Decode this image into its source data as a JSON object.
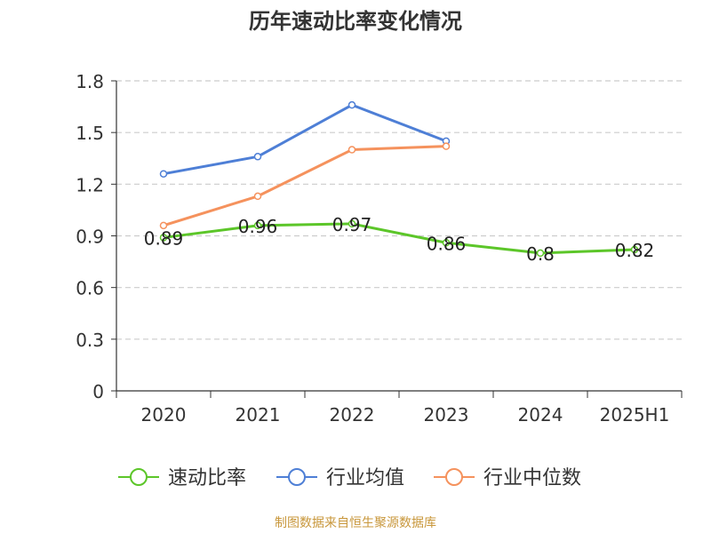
{
  "chart_data": {
    "type": "line",
    "title": "历年速动比率变化情况",
    "categories": [
      "2020",
      "2021",
      "2022",
      "2023",
      "2024",
      "2025H1"
    ],
    "ylim": [
      0,
      1.8
    ],
    "yticks": [
      "0",
      "0.3",
      "0.6",
      "0.9",
      "1.2",
      "1.5",
      "1.8"
    ],
    "grid": true,
    "legend_position": "bottom",
    "series": [
      {
        "name": "速动比率",
        "color": "#5cc629",
        "values": [
          0.89,
          0.96,
          0.97,
          0.86,
          0.8,
          0.82
        ],
        "show_labels": true
      },
      {
        "name": "行业均值",
        "color": "#4e7fd6",
        "values": [
          1.26,
          1.36,
          1.66,
          1.45,
          null,
          null
        ],
        "show_labels": false
      },
      {
        "name": "行业中位数",
        "color": "#f5925d",
        "values": [
          0.96,
          1.13,
          1.4,
          1.42,
          null,
          null
        ],
        "show_labels": false
      }
    ],
    "source": "制图数据来自恒生聚源数据库"
  }
}
